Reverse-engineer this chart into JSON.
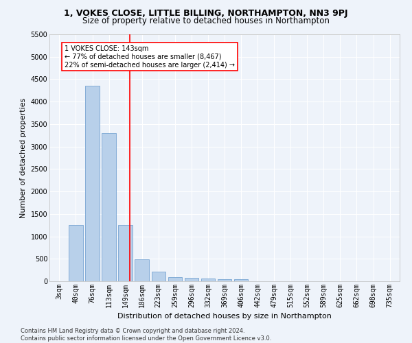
{
  "title": "1, VOKES CLOSE, LITTLE BILLING, NORTHAMPTON, NN3 9PJ",
  "subtitle": "Size of property relative to detached houses in Northampton",
  "xlabel": "Distribution of detached houses by size in Northampton",
  "ylabel": "Number of detached properties",
  "bar_labels": [
    "3sqm",
    "40sqm",
    "76sqm",
    "113sqm",
    "149sqm",
    "186sqm",
    "223sqm",
    "259sqm",
    "296sqm",
    "332sqm",
    "369sqm",
    "406sqm",
    "442sqm",
    "479sqm",
    "515sqm",
    "552sqm",
    "589sqm",
    "625sqm",
    "662sqm",
    "698sqm",
    "735sqm"
  ],
  "bar_values": [
    0,
    1250,
    4350,
    3300,
    1250,
    490,
    210,
    90,
    75,
    55,
    50,
    50,
    0,
    0,
    0,
    0,
    0,
    0,
    0,
    0,
    0
  ],
  "bar_color": "#b8d0ea",
  "bar_edgecolor": "#6699cc",
  "vline_x": 4.25,
  "vline_color": "red",
  "annotation_text": "1 VOKES CLOSE: 143sqm\n← 77% of detached houses are smaller (8,467)\n22% of semi-detached houses are larger (2,414) →",
  "annotation_box_color": "white",
  "annotation_box_edgecolor": "red",
  "ylim": [
    0,
    5500
  ],
  "yticks": [
    0,
    500,
    1000,
    1500,
    2000,
    2500,
    3000,
    3500,
    4000,
    4500,
    5000,
    5500
  ],
  "footer": "Contains HM Land Registry data © Crown copyright and database right 2024.\nContains public sector information licensed under the Open Government Licence v3.0.",
  "bg_color": "#eef3fa",
  "plot_bg_color": "#eef3fa",
  "grid_color": "white",
  "title_fontsize": 9,
  "subtitle_fontsize": 8.5,
  "axis_label_fontsize": 8,
  "tick_fontsize": 7,
  "annotation_fontsize": 7,
  "footer_fontsize": 6
}
